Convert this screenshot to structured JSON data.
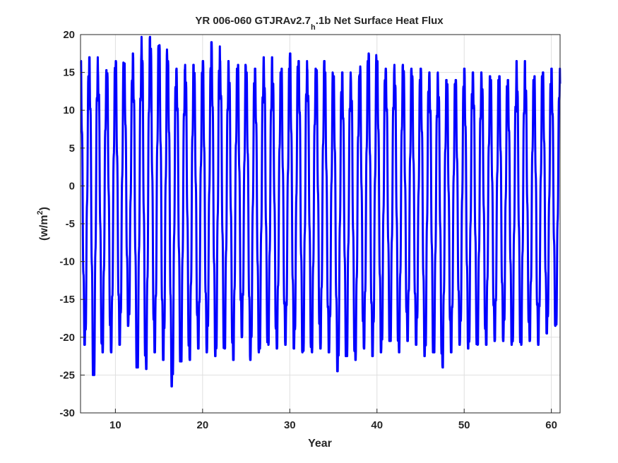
{
  "chart_data": {
    "type": "line",
    "title": {
      "prefix": "YR 006-060 GTJRAv2.7",
      "subscript": "h",
      "suffix": ".1b Net Surface Heat Flux"
    },
    "xlabel": "Year",
    "ylabel": {
      "main": "(w/m",
      "sup": "2",
      "close": ")"
    },
    "xlim": [
      6,
      61
    ],
    "ylim": [
      -30,
      20
    ],
    "xticks": [
      10,
      20,
      30,
      40,
      50,
      60
    ],
    "yticks": [
      20,
      15,
      10,
      5,
      0,
      -5,
      -10,
      -15,
      -20,
      -25,
      -30
    ],
    "grid": true,
    "line_color": "#0000ff",
    "series": [
      {
        "years": [
          6,
          7,
          8,
          9,
          10,
          11,
          12,
          13,
          14,
          15,
          16,
          17,
          18,
          19,
          20,
          21,
          22,
          23,
          24,
          25,
          26,
          27,
          28,
          29,
          30,
          31,
          32,
          33,
          34,
          35,
          36,
          37,
          38,
          39,
          40,
          41,
          42,
          43,
          44,
          45,
          46,
          47,
          48,
          49,
          50,
          51,
          52,
          53,
          54,
          55,
          56,
          57,
          58,
          59,
          60
        ],
        "peaks": [
          16.5,
          17.0,
          15.3,
          15.6,
          16.5,
          16.2,
          17.5,
          19.7,
          18.5,
          18.6,
          16.5,
          15.5,
          16.0,
          15.0,
          16.5,
          19.0,
          16.5,
          15.5,
          16.0,
          15.0,
          15.5,
          17.0,
          15.0,
          15.5,
          17.5,
          16.5,
          15.5,
          16.5,
          15.0,
          14.5,
          15.0,
          14.5,
          16.5,
          17.5,
          16.5,
          15.5,
          16.0,
          15.5,
          14.5,
          15.5,
          15.0,
          14.0,
          13.5,
          14.0,
          15.5,
          15.0,
          14.5,
          14.0,
          14.5,
          14.0,
          16.5,
          14.0,
          14.5,
          15.0,
          15.5
        ],
        "troughs": [
          -21.0,
          -25.0,
          -22.0,
          -22.0,
          -21.0,
          -18.5,
          -24.0,
          -24.2,
          -22.0,
          -23.0,
          -26.5,
          -23.2,
          -23.0,
          -21.5,
          -22.0,
          -22.5,
          -21.5,
          -23.0,
          -20.0,
          -23.0,
          -22.0,
          -21.0,
          -21.5,
          -21.0,
          -21.5,
          -22.0,
          -22.0,
          -21.5,
          -22.0,
          -24.5,
          -22.5,
          -23.0,
          -21.5,
          -22.5,
          -22.0,
          -20.5,
          -22.0,
          -20.5,
          -21.0,
          -22.5,
          -22.0,
          -24.0,
          -22.0,
          -21.0,
          -21.5,
          -21.0,
          -21.0,
          -20.5,
          -20.5,
          -21.0,
          -21.0,
          -20.5,
          -21.0,
          -19.5,
          -18.5
        ],
        "end_value": 13.5
      }
    ]
  }
}
